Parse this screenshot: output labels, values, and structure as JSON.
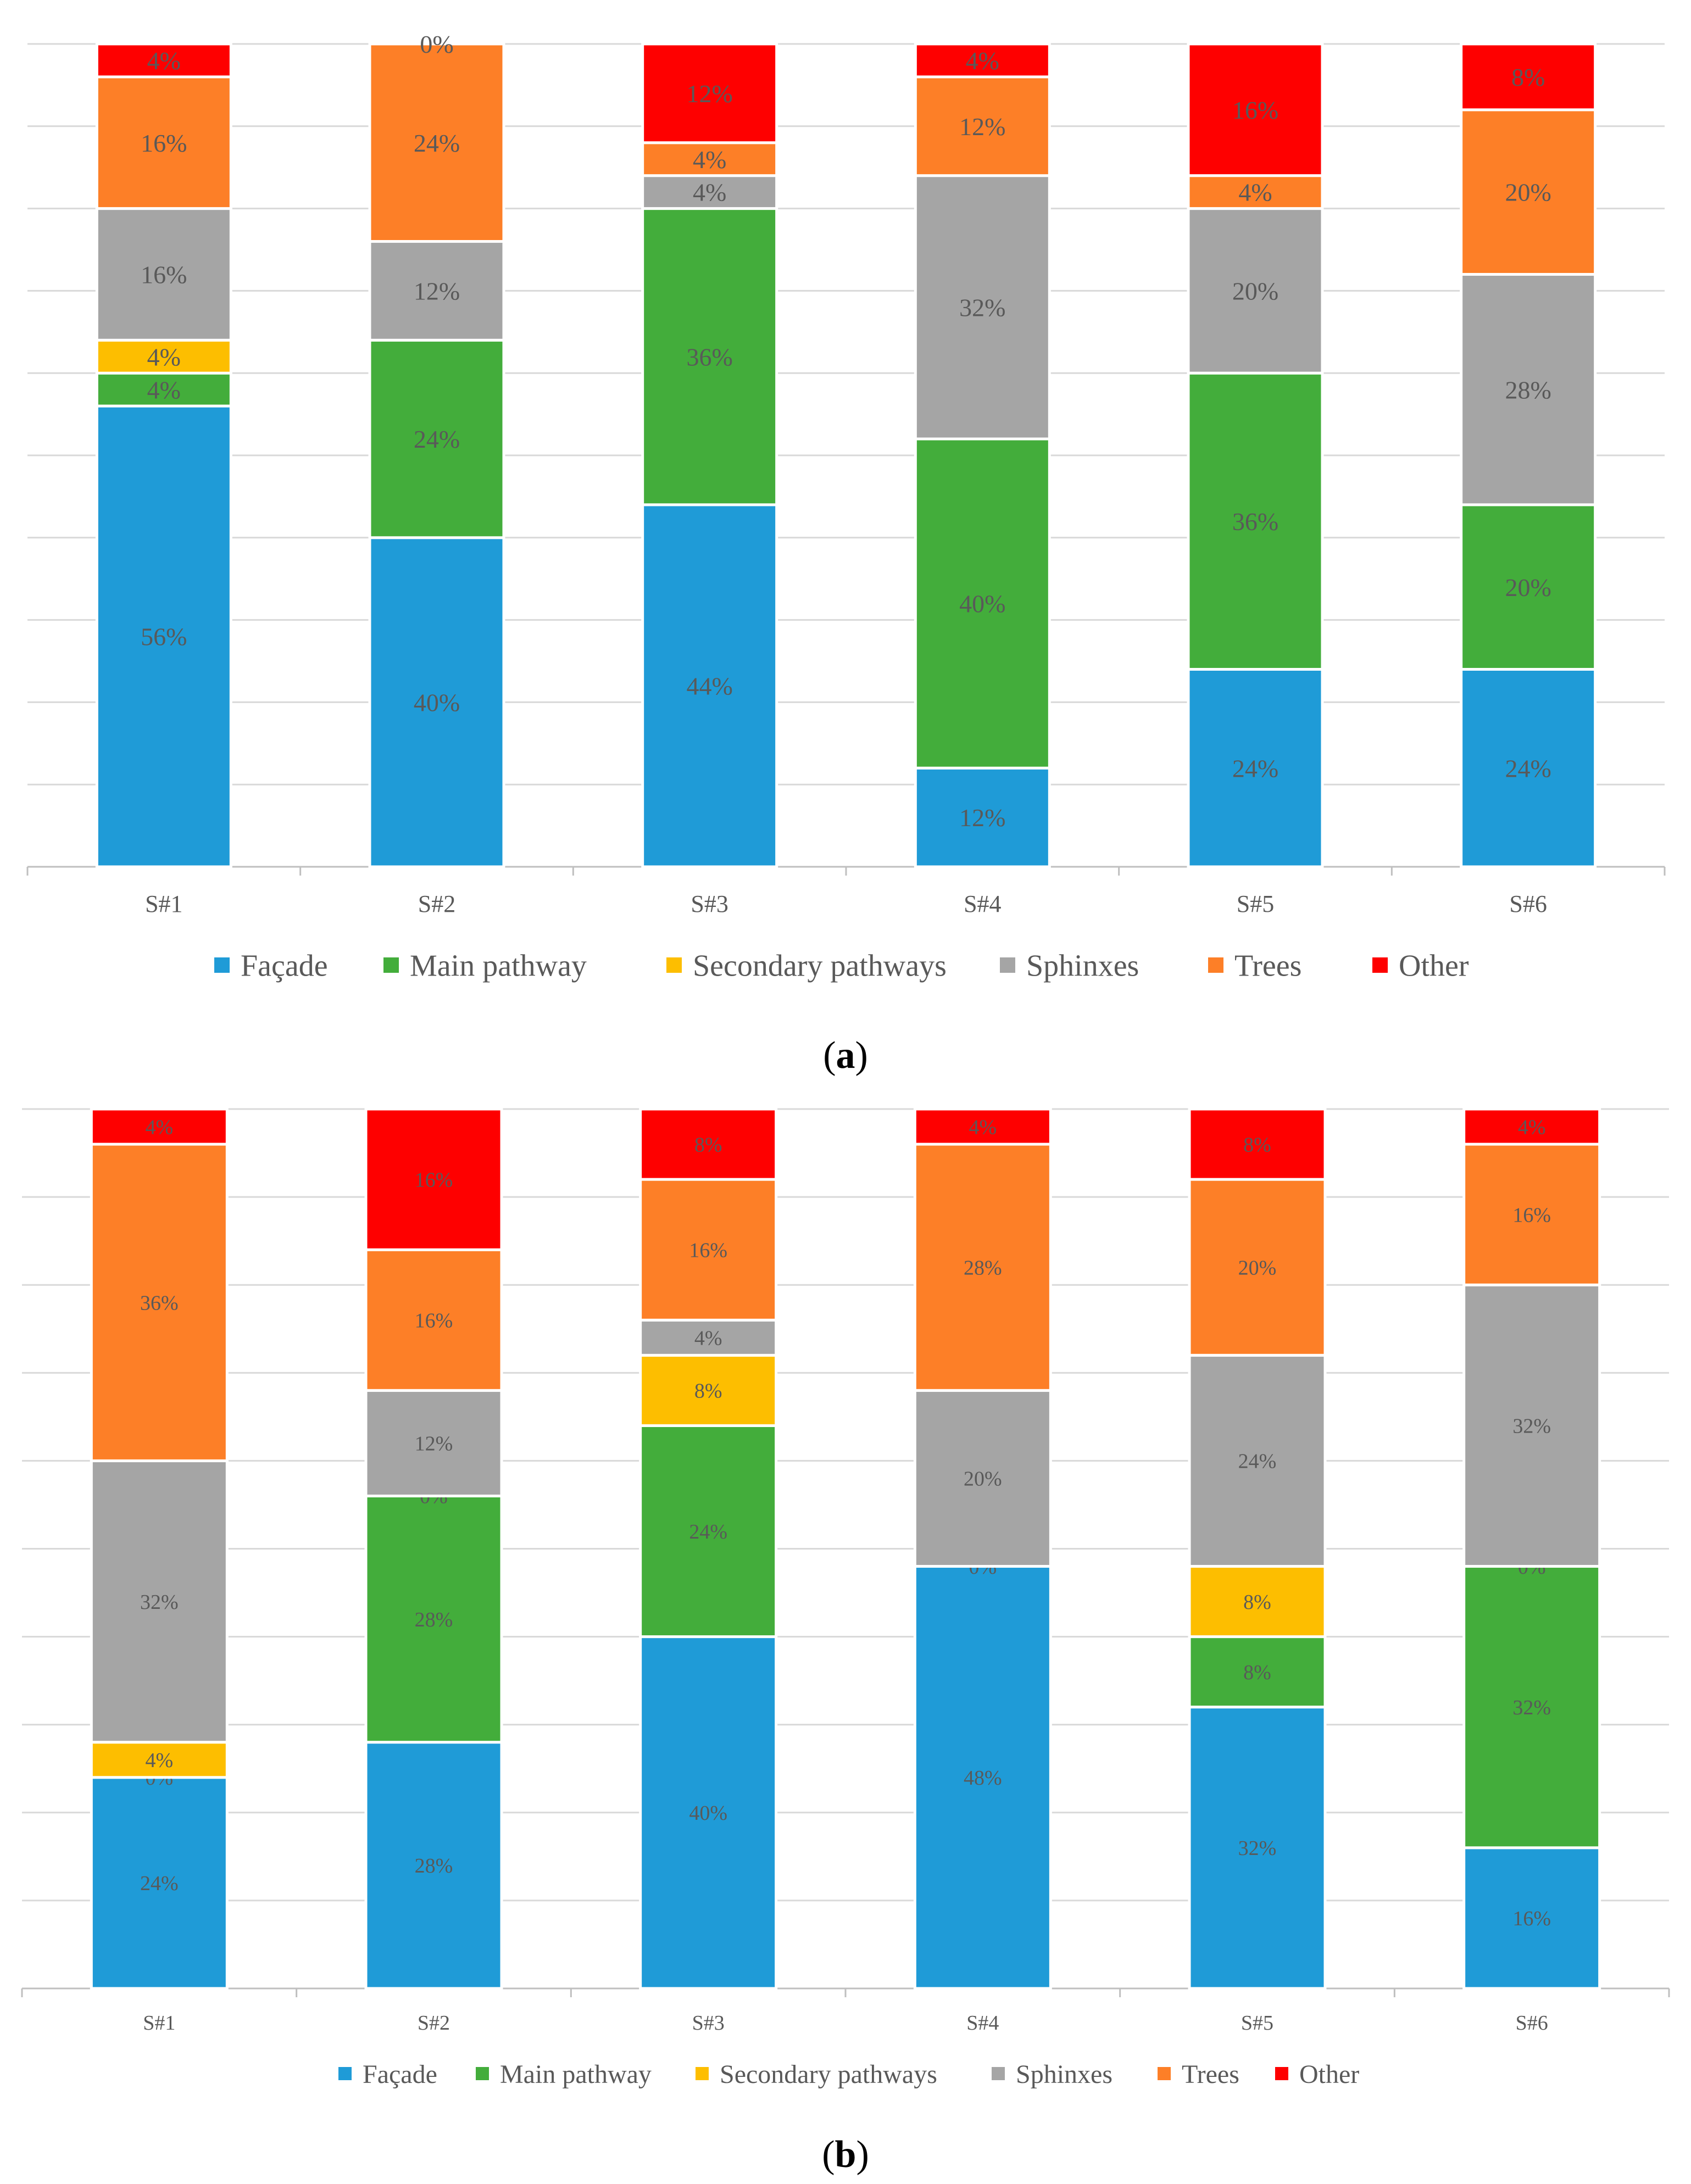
{
  "figure": {
    "panels": [
      {
        "caption_letter": "a"
      },
      {
        "caption_letter": "b"
      }
    ]
  },
  "colors": {
    "Façade": "#1f9bd7",
    "Main pathway": "#43ad3b",
    "Secondary pathways": "#fdbe00",
    "Sphinxes": "#a5a5a5",
    "Trees": "#fd7f27",
    "Other": "#fe0000",
    "gridline": "#d9d9d9",
    "axis": "#bfbfbf",
    "label_text": "#595959"
  },
  "chart_data": [
    {
      "type": "bar",
      "stacked": true,
      "panel": "a",
      "title": "",
      "xlabel": "",
      "ylabel": "",
      "ylim": [
        0,
        100
      ],
      "grid": true,
      "legend_position": "bottom",
      "categories": [
        "S#1",
        "S#2",
        "S#3",
        "S#4",
        "S#5",
        "S#6"
      ],
      "series": [
        {
          "name": "Façade",
          "values": [
            56,
            40,
            44,
            12,
            24,
            24
          ]
        },
        {
          "name": "Main pathway",
          "values": [
            4,
            24,
            36,
            40,
            36,
            20
          ]
        },
        {
          "name": "Secondary pathways",
          "values": [
            4,
            0,
            0,
            0,
            0,
            0
          ]
        },
        {
          "name": "Sphinxes",
          "values": [
            16,
            12,
            4,
            32,
            20,
            28
          ]
        },
        {
          "name": "Trees",
          "values": [
            16,
            24,
            4,
            12,
            4,
            20
          ]
        },
        {
          "name": "Other",
          "values": [
            4,
            0,
            12,
            4,
            16,
            8
          ]
        }
      ],
      "data_labels": [
        [
          "56%",
          "4%",
          "4%",
          "16%",
          "16%",
          "4%"
        ],
        [
          "40%",
          "24%",
          null,
          "12%",
          "24%",
          "0%"
        ],
        [
          "44%",
          "36%",
          null,
          "4%",
          "4%",
          "12%"
        ],
        [
          "12%",
          "40%",
          null,
          "32%",
          "12%",
          "4%"
        ],
        [
          "24%",
          "36%",
          null,
          "20%",
          "4%",
          "16%"
        ],
        [
          "24%",
          "20%",
          null,
          "28%",
          "20%",
          "8%"
        ]
      ]
    },
    {
      "type": "bar",
      "stacked": true,
      "panel": "b",
      "title": "",
      "xlabel": "",
      "ylabel": "",
      "ylim": [
        0,
        100
      ],
      "grid": true,
      "legend_position": "bottom",
      "categories": [
        "S#1",
        "S#2",
        "S#3",
        "S#4",
        "S#5",
        "S#6"
      ],
      "series": [
        {
          "name": "Façade",
          "values": [
            24,
            28,
            40,
            48,
            32,
            16
          ]
        },
        {
          "name": "Main pathway",
          "values": [
            0,
            28,
            24,
            0,
            8,
            32
          ]
        },
        {
          "name": "Secondary pathways",
          "values": [
            4,
            0,
            8,
            0,
            8,
            0
          ]
        },
        {
          "name": "Sphinxes",
          "values": [
            32,
            12,
            4,
            20,
            24,
            32
          ]
        },
        {
          "name": "Trees",
          "values": [
            36,
            16,
            16,
            28,
            20,
            16
          ]
        },
        {
          "name": "Other",
          "values": [
            4,
            16,
            8,
            4,
            8,
            4
          ]
        }
      ],
      "data_labels": [
        [
          "24%",
          "0%",
          "4%",
          "32%",
          "36%",
          "4%"
        ],
        [
          "28%",
          "28%",
          "0%",
          "12%",
          "16%",
          "16%"
        ],
        [
          "40%",
          "24%",
          "8%",
          "4%",
          "16%",
          "8%"
        ],
        [
          "48%",
          "0%",
          null,
          "20%",
          "28%",
          "4%"
        ],
        [
          "32%",
          "8%",
          "8%",
          "24%",
          "20%",
          "8%"
        ],
        [
          "16%",
          "32%",
          "0%",
          "32%",
          "16%",
          "4%"
        ]
      ]
    }
  ]
}
